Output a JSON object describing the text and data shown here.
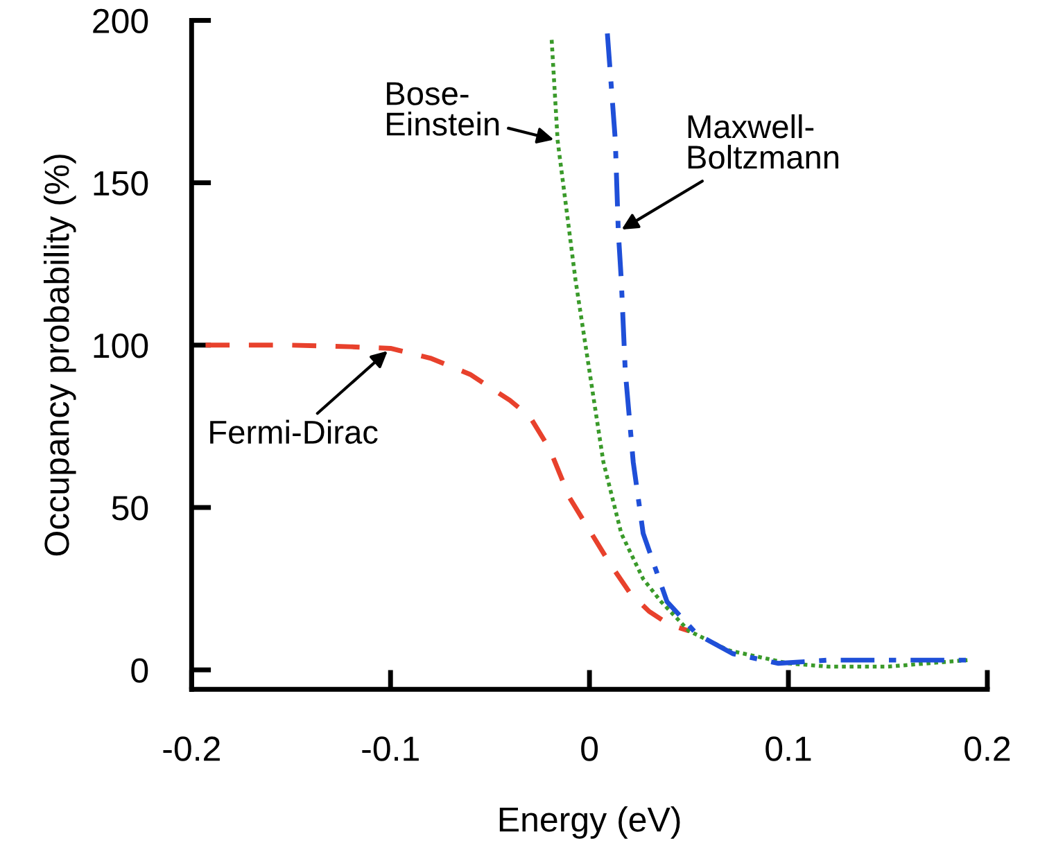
{
  "chart_data": {
    "type": "line",
    "xlabel": "Energy (eV)",
    "ylabel": "Occupancy probability (%)",
    "xlim": [
      -0.2,
      0.2
    ],
    "ylim": [
      -6,
      200
    ],
    "xticks": [
      -0.2,
      -0.1,
      0,
      0.1,
      0.2
    ],
    "yticks": [
      0,
      50,
      100,
      150,
      200
    ],
    "grid": false,
    "legend": false,
    "marker": "none",
    "series": [
      {
        "name": "Fermi-Dirac",
        "color": "#e8412c",
        "line_style": "dashed",
        "x": [
          -0.193,
          -0.15,
          -0.12,
          -0.1,
          -0.08,
          -0.06,
          -0.04,
          -0.03,
          -0.02,
          -0.01,
          0,
          0.01,
          0.02,
          0.03,
          0.04,
          0.05
        ],
        "values": [
          100,
          100,
          99.5,
          99,
          96,
          91,
          83,
          78,
          68,
          53,
          43,
          33,
          24,
          18,
          14,
          12
        ]
      },
      {
        "name": "Bose-\nEinstein",
        "color": "#3a9a2a",
        "line_style": "dotted",
        "x": [
          -0.019,
          -0.016,
          -0.007,
          0,
          0.007,
          0.016,
          0.027,
          0.036,
          0.05,
          0.07,
          0.1,
          0.12,
          0.15,
          0.19
        ],
        "values": [
          194,
          163,
          120,
          92,
          64,
          42,
          28,
          21,
          12,
          6,
          2,
          1,
          1,
          3
        ]
      },
      {
        "name": "Maxwell-\nBoltzmann",
        "color": "#1f4fd8",
        "line_style": "dashdot",
        "x": [
          0.009,
          0.013,
          0.0145,
          0.016,
          0.018,
          0.022,
          0.027,
          0.039,
          0.054,
          0.072,
          0.095,
          0.12,
          0.15,
          0.19
        ],
        "values": [
          196,
          163,
          135,
          120,
          92,
          64,
          42,
          21,
          11,
          5,
          2,
          3,
          3,
          3
        ]
      }
    ]
  }
}
